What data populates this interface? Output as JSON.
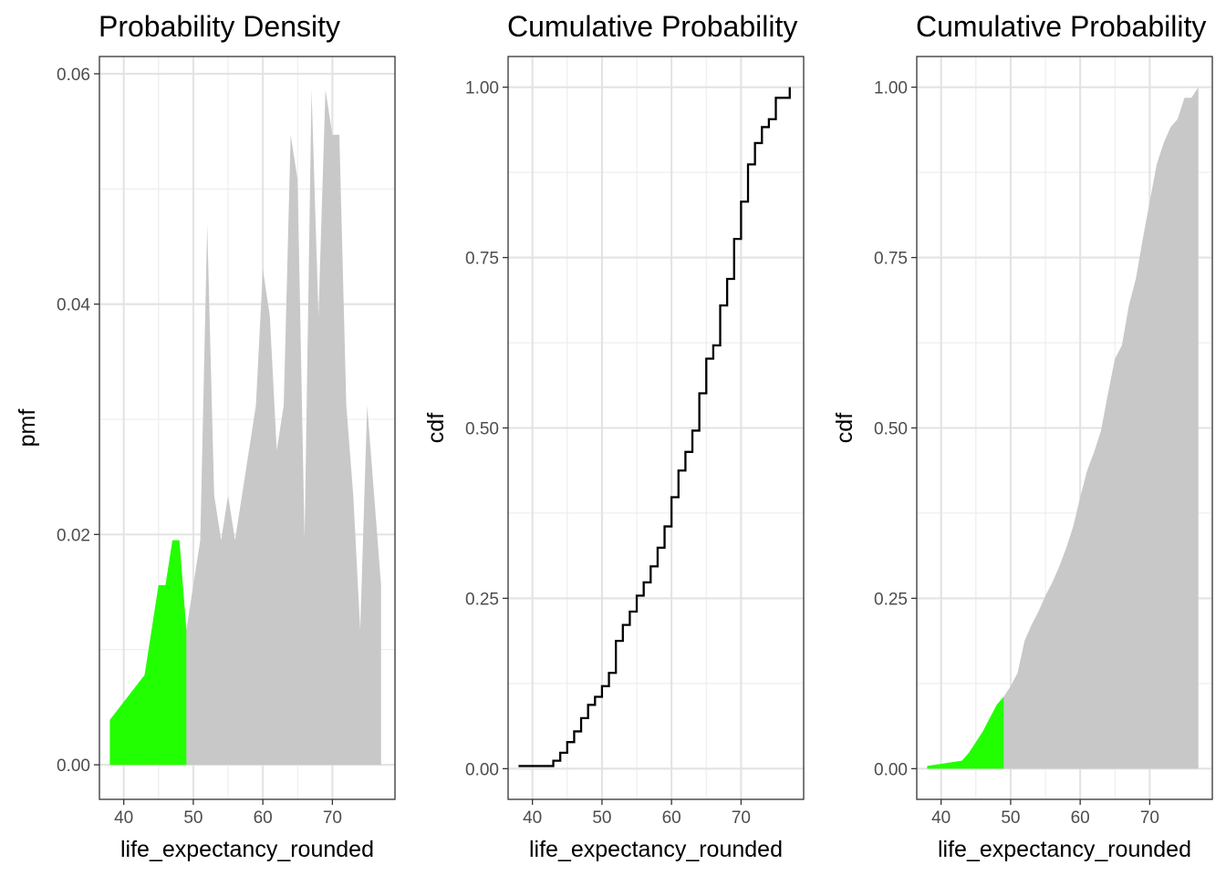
{
  "chart_data": [
    {
      "type": "area",
      "title": "Probability Density",
      "xlabel": "life_expectancy_rounded",
      "ylabel": "pmf",
      "xlim": [
        36.5,
        79
      ],
      "ylim": [
        -0.003,
        0.0615
      ],
      "xticks": [
        40,
        50,
        60,
        70
      ],
      "yticks": [
        0.0,
        0.02,
        0.04,
        0.06
      ],
      "ytick_labels": [
        "0.00",
        "0.02",
        "0.04",
        "0.06"
      ],
      "grid": true,
      "fill_color": "#c8c8c8",
      "highlight_color": "#22ff00",
      "highlight_upto": 49,
      "x": [
        38,
        43,
        45,
        46,
        47,
        48,
        49,
        50,
        51,
        52,
        53,
        54,
        55,
        56,
        57,
        58,
        59,
        60,
        61,
        62,
        63,
        64,
        65,
        66,
        67,
        68,
        69,
        70,
        71,
        72,
        73,
        74,
        75,
        76,
        77
      ],
      "y": [
        0.0039,
        0.0078,
        0.0156,
        0.0156,
        0.0195,
        0.0195,
        0.0117,
        0.0156,
        0.0195,
        0.0469,
        0.0234,
        0.0195,
        0.0234,
        0.0195,
        0.0234,
        0.0273,
        0.0312,
        0.043,
        0.039,
        0.0273,
        0.0312,
        0.0547,
        0.0508,
        0.0195,
        0.0586,
        0.039,
        0.0586,
        0.0547,
        0.0547,
        0.0312,
        0.0234,
        0.0117,
        0.0312,
        0.0234,
        0.0156
      ]
    },
    {
      "type": "line",
      "step": true,
      "title": "Cumulative Probability",
      "xlabel": "life_expectancy_rounded",
      "ylabel": "cdf",
      "xlim": [
        36.5,
        79
      ],
      "ylim": [
        -0.045,
        1.045
      ],
      "xticks": [
        40,
        50,
        60,
        70
      ],
      "yticks": [
        0.0,
        0.25,
        0.5,
        0.75,
        1.0
      ],
      "ytick_labels": [
        "0.00",
        "0.25",
        "0.50",
        "0.75",
        "1.00"
      ],
      "grid": true,
      "line_color": "#000000",
      "x": [
        38,
        43,
        44,
        45,
        46,
        47,
        48,
        49,
        50,
        51,
        52,
        53,
        54,
        55,
        56,
        57,
        58,
        59,
        60,
        61,
        62,
        63,
        64,
        65,
        66,
        67,
        68,
        69,
        70,
        71,
        72,
        73,
        74,
        75,
        76,
        77
      ],
      "y": [
        0.0039,
        0.0117,
        0.0234,
        0.039,
        0.0547,
        0.0742,
        0.0937,
        0.1055,
        0.1211,
        0.1406,
        0.1875,
        0.2109,
        0.2305,
        0.2539,
        0.2734,
        0.2969,
        0.3242,
        0.3555,
        0.3984,
        0.4375,
        0.4648,
        0.4961,
        0.5508,
        0.6016,
        0.6211,
        0.6797,
        0.7187,
        0.7773,
        0.832,
        0.8867,
        0.918,
        0.9414,
        0.9531,
        0.9844,
        0.9844,
        1.0
      ]
    },
    {
      "type": "area",
      "title": "Cumulative Probability",
      "xlabel": "life_expectancy_rounded",
      "ylabel": "cdf",
      "xlim": [
        36.5,
        79
      ],
      "ylim": [
        -0.045,
        1.045
      ],
      "xticks": [
        40,
        50,
        60,
        70
      ],
      "yticks": [
        0.0,
        0.25,
        0.5,
        0.75,
        1.0
      ],
      "ytick_labels": [
        "0.00",
        "0.25",
        "0.50",
        "0.75",
        "1.00"
      ],
      "grid": true,
      "fill_color": "#c8c8c8",
      "highlight_color": "#22ff00",
      "highlight_upto": 49,
      "x": [
        38,
        43,
        44,
        45,
        46,
        47,
        48,
        49,
        50,
        51,
        52,
        53,
        54,
        55,
        56,
        57,
        58,
        59,
        60,
        61,
        62,
        63,
        64,
        65,
        66,
        67,
        68,
        69,
        70,
        71,
        72,
        73,
        74,
        75,
        76,
        77
      ],
      "y": [
        0.0039,
        0.0117,
        0.0234,
        0.039,
        0.0547,
        0.0742,
        0.0937,
        0.1055,
        0.1211,
        0.1406,
        0.1875,
        0.2109,
        0.2305,
        0.2539,
        0.2734,
        0.2969,
        0.3242,
        0.3555,
        0.3984,
        0.4375,
        0.4648,
        0.4961,
        0.5508,
        0.6016,
        0.6211,
        0.6797,
        0.7187,
        0.7773,
        0.832,
        0.8867,
        0.918,
        0.9414,
        0.9531,
        0.9844,
        0.9844,
        1.0
      ]
    }
  ]
}
